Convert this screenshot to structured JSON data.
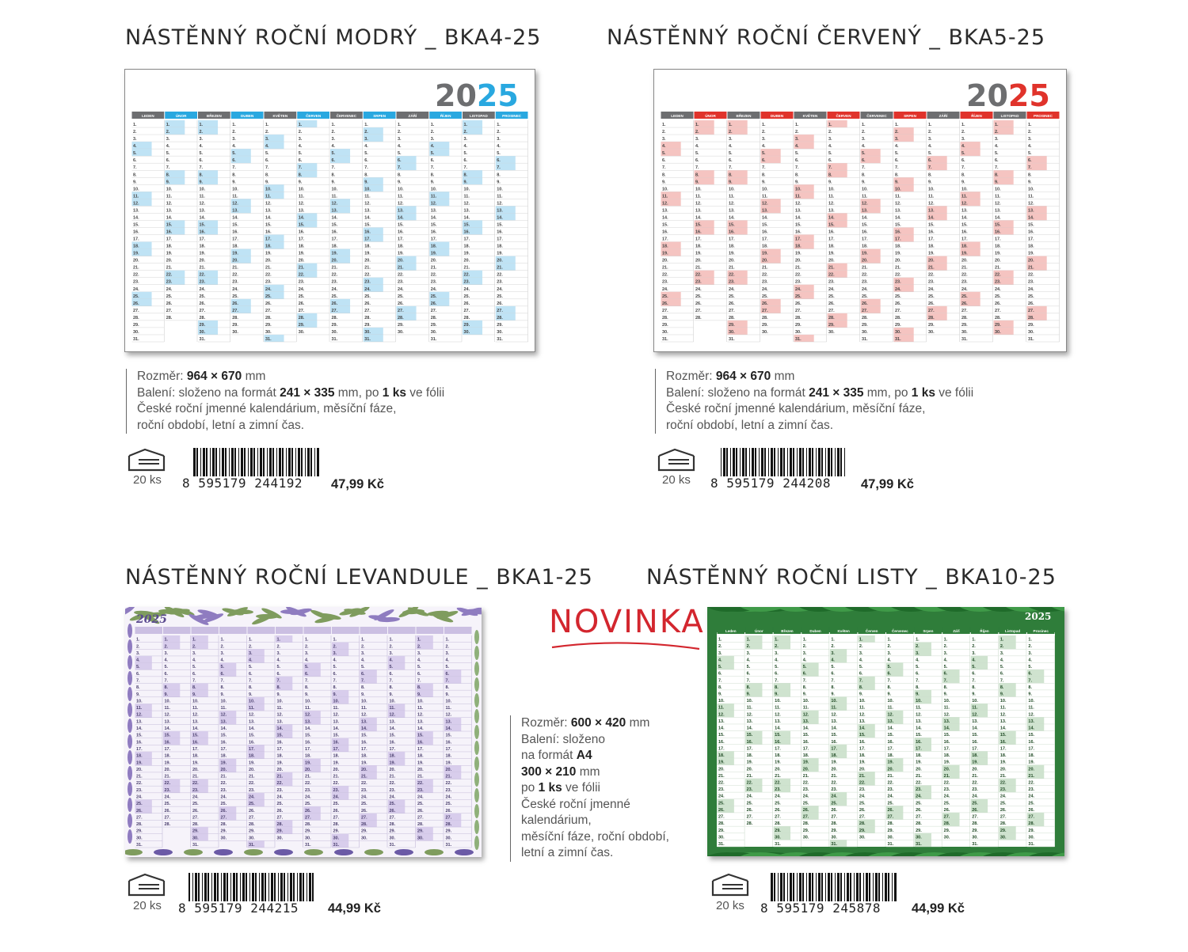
{
  "products": [
    {
      "title": "NÁSTĚNNÝ ROČNÍ MODRÝ _ BKA4-25",
      "year": "2025",
      "accent": "#29a8e0",
      "months": [
        "LEDEN",
        "ÚNOR",
        "BŘEZEN",
        "DUBEN",
        "KVĚTEN",
        "ČERVEN",
        "ČERVENEC",
        "SRPEN",
        "ZÁŘÍ",
        "ŘÍJEN",
        "LISTOPAD",
        "PROSINEC"
      ],
      "desc": {
        "size_label": "Rozměr: ",
        "size_value": "964 × 670",
        "size_unit": " mm",
        "pack_label": "Balení: složeno na formát ",
        "pack_value": "241 × 335",
        "pack_mid": " mm, po ",
        "pack_qty": "1 ks",
        "pack_end": " ve fólii",
        "line3": "České roční jmenné kalendárium, měsíční fáze,",
        "line4": "roční období, letní a zimní čas."
      },
      "box_count": "20 ks",
      "ean": "8  595179  244192",
      "price": "47,99 Kč"
    },
    {
      "title": "NÁSTĚNNÝ ROČNÍ ČERVENÝ _ BKA5-25",
      "year": "2025",
      "accent": "#e0332b",
      "months": [
        "LEDEN",
        "ÚNOR",
        "BŘEZEN",
        "DUBEN",
        "KVĚTEN",
        "ČERVEN",
        "ČERVENEC",
        "SRPEN",
        "ZÁŘÍ",
        "ŘÍJEN",
        "LISTOPAD",
        "PROSINEC"
      ],
      "desc": {
        "size_label": "Rozměr: ",
        "size_value": "964 × 670",
        "size_unit": " mm",
        "pack_label": "Balení: složeno na formát ",
        "pack_value": "241 × 335",
        "pack_mid": " mm, po ",
        "pack_qty": "1 ks",
        "pack_end": " ve fólii",
        "line3": "České roční jmenné kalendárium, měsíční fáze,",
        "line4": "roční období, letní a zimní čas."
      },
      "box_count": "20 ks",
      "ean": "8  595179  244208",
      "price": "47,99 Kč"
    },
    {
      "title": "NÁSTĚNNÝ ROČNÍ LEVANDULE _ BKA1-25",
      "year": "2025",
      "accent": "#8a78b8",
      "box_count": "20 ks",
      "ean": "8  595179  244215",
      "price": "44,99 Kč"
    },
    {
      "title": "NÁSTĚNNÝ ROČNÍ LISTY _ BKA10-25",
      "year": "2025",
      "accent": "#2f7d3a",
      "months": [
        "Leden",
        "Únor",
        "Březen",
        "Duben",
        "Květen",
        "Červen",
        "Červenec",
        "Srpen",
        "Září",
        "Říjen",
        "Listopad",
        "Prosinec"
      ],
      "box_count": "20 ks",
      "ean": "8  595179  245878",
      "price": "44,99 Kč"
    }
  ],
  "novinka": "NOVINKA",
  "small_desc": {
    "size_label": "Rozměr: ",
    "size_value": "600 × 420",
    "size_unit": " mm",
    "pack_line1": "Balení: složeno",
    "pack_line2_a": "na formát ",
    "pack_line2_b": "A4",
    "pack_line3": "300 × 210",
    "pack_line3_unit": " mm",
    "pack_line4_a": "po ",
    "pack_line4_b": "1 ks",
    "pack_line4_c": " ve fólii",
    "l5": "České roční jmenné",
    "l6": "kalendárium,",
    "l7": "měsíční fáze, roční období,",
    "l8": "letní a zimní čas."
  }
}
